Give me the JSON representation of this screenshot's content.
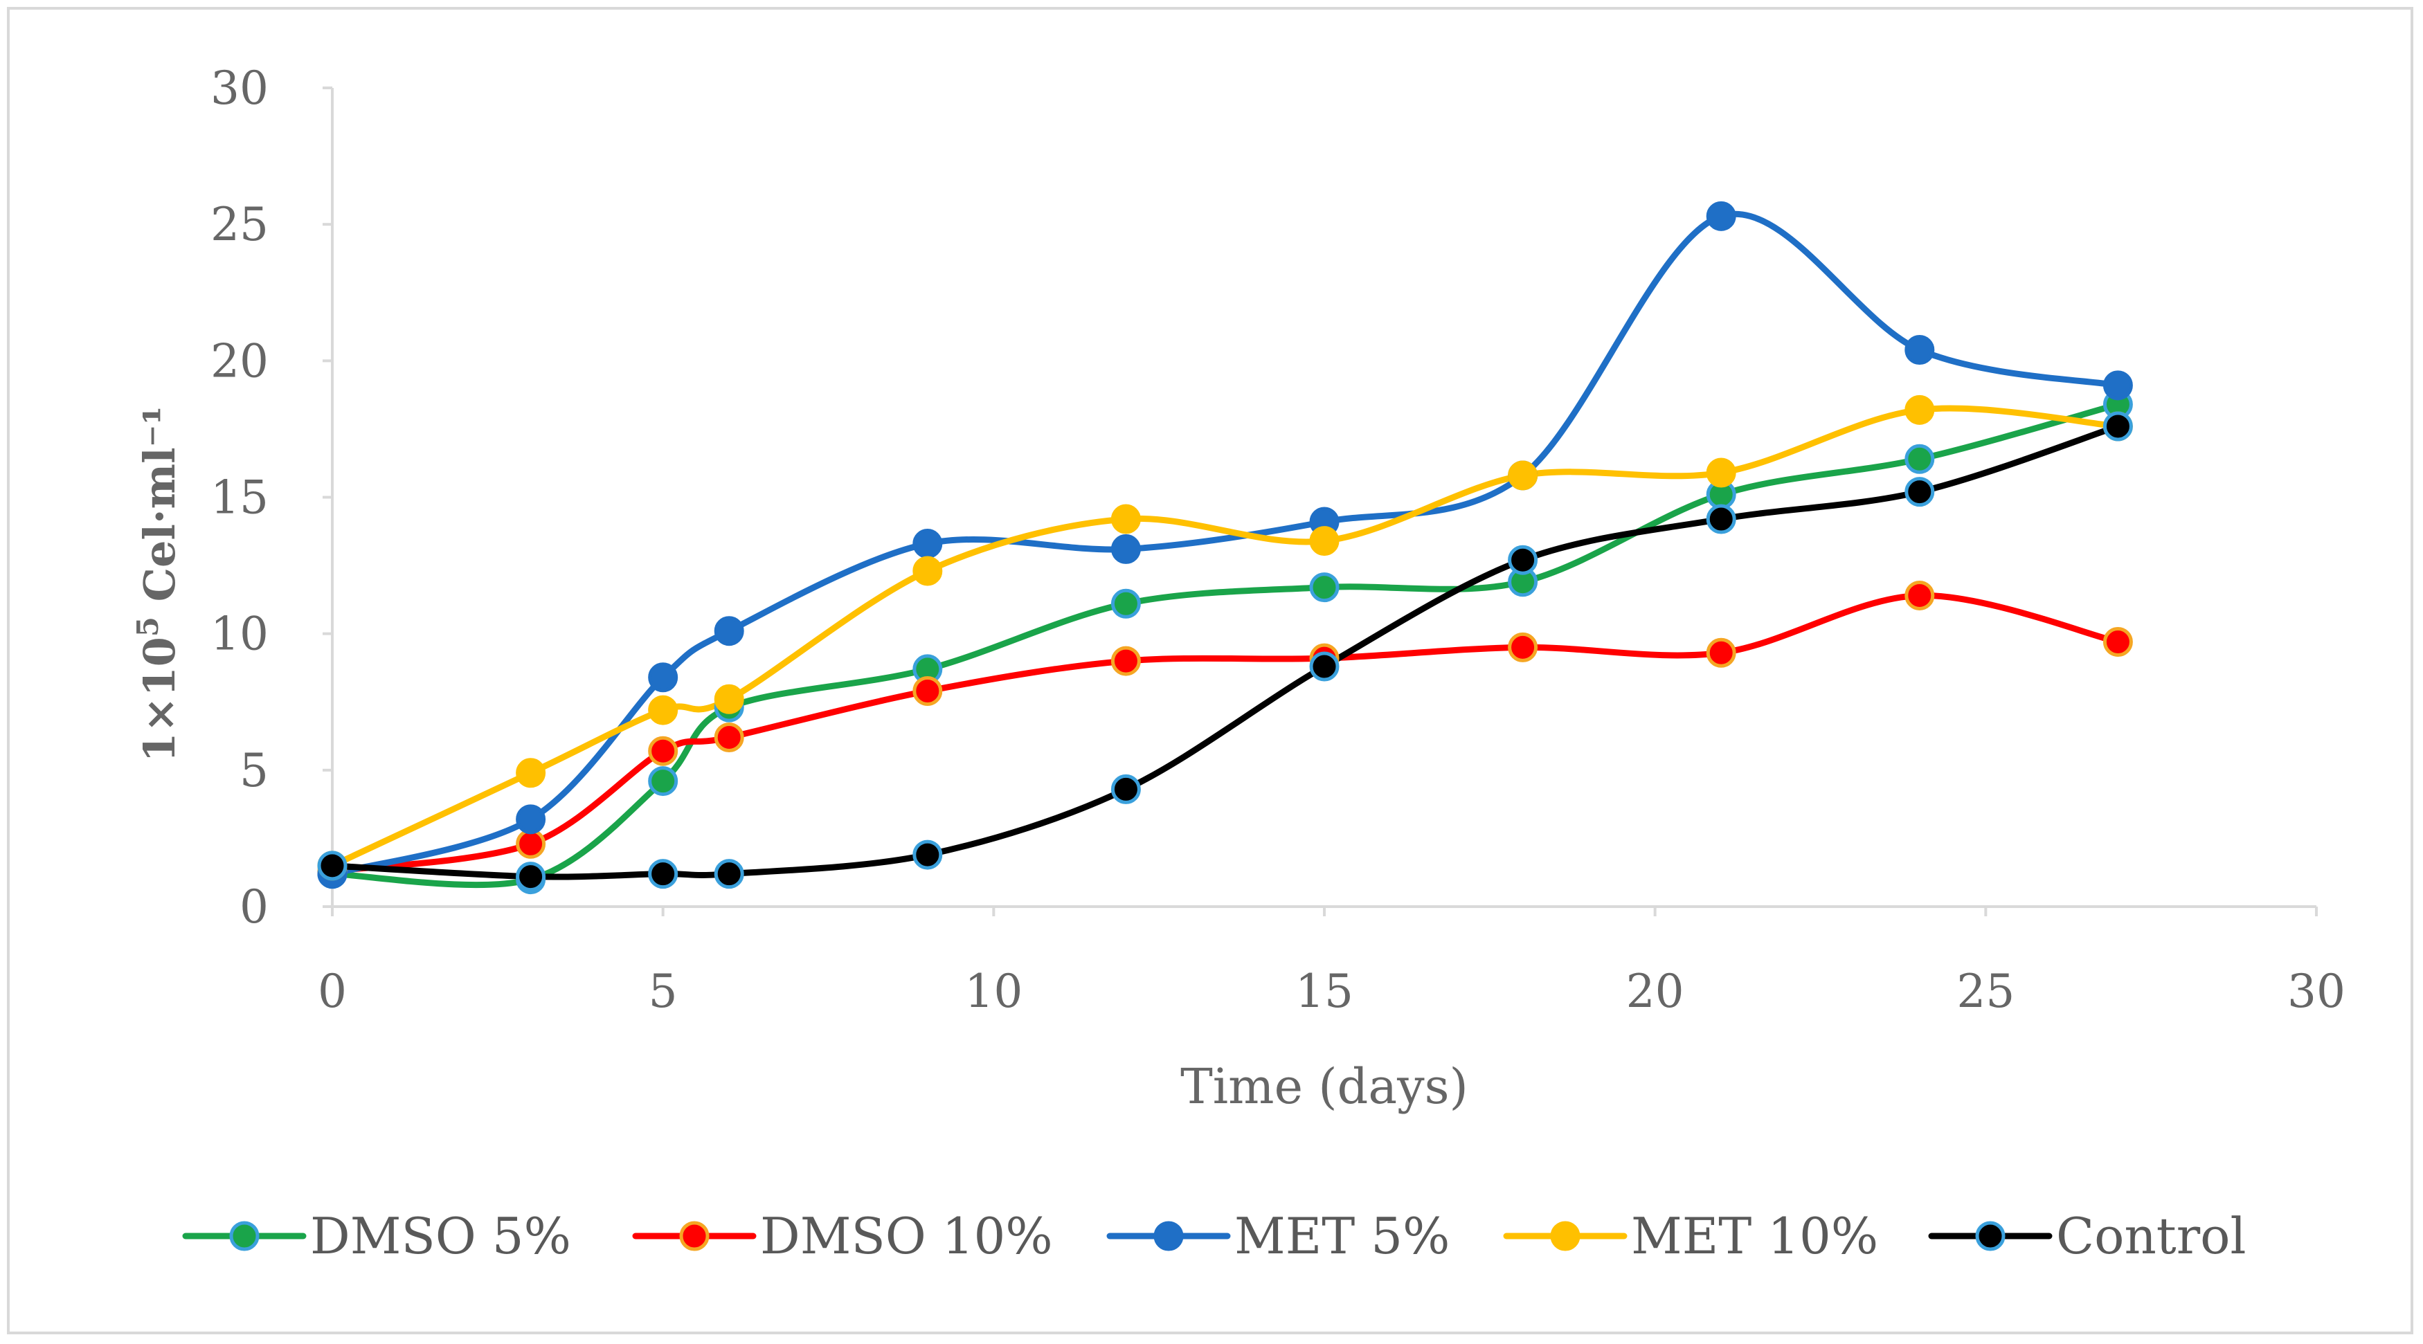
{
  "chart_data": {
    "type": "line",
    "smooth": true,
    "xlabel": "Time (days)",
    "ylabel": {
      "base": "1×10",
      "sup": "5",
      "rest": " Cel·ml⁻¹"
    },
    "xlim": [
      0,
      30
    ],
    "ylim": [
      0,
      30
    ],
    "xticks": [
      0,
      5,
      10,
      15,
      20,
      25,
      30
    ],
    "yticks": [
      0,
      5,
      10,
      15,
      20,
      25,
      30
    ],
    "legend_position": "bottom",
    "x": [
      0,
      3,
      5,
      6,
      9,
      12,
      15,
      18,
      21,
      24,
      27
    ],
    "series": [
      {
        "name": "DMSO 5%",
        "line_color": "#1aa44a",
        "marker_fill": "#1aa44a",
        "marker_edge": "#3aa0dc",
        "values": [
          1.2,
          1.0,
          4.6,
          7.3,
          8.7,
          11.1,
          11.7,
          11.9,
          15.1,
          16.4,
          18.4
        ]
      },
      {
        "name": "DMSO 10%",
        "line_color": "#ff0000",
        "marker_fill": "#ff0000",
        "marker_edge": "#f5a623",
        "values": [
          1.3,
          2.3,
          5.7,
          6.2,
          7.9,
          9.0,
          9.1,
          9.5,
          9.3,
          11.4,
          9.7
        ]
      },
      {
        "name": "MET 5%",
        "line_color": "#1f6fc6",
        "marker_fill": "#1f6fc6",
        "marker_edge": "#1f6fc6",
        "values": [
          1.2,
          3.2,
          8.4,
          10.1,
          13.3,
          13.1,
          14.1,
          15.8,
          25.3,
          20.4,
          19.1
        ]
      },
      {
        "name": "MET 10%",
        "line_color": "#ffc000",
        "marker_fill": "#ffc000",
        "marker_edge": "#ffc000",
        "values": [
          1.5,
          4.9,
          7.2,
          7.6,
          12.3,
          14.2,
          13.4,
          15.8,
          15.9,
          18.2,
          17.6
        ]
      },
      {
        "name": "Control",
        "line_color": "#000000",
        "marker_fill": "#000000",
        "marker_edge": "#3aa0dc",
        "values": [
          1.5,
          1.1,
          1.2,
          1.2,
          1.9,
          4.3,
          8.8,
          12.7,
          14.2,
          15.2,
          17.6
        ]
      }
    ]
  }
}
